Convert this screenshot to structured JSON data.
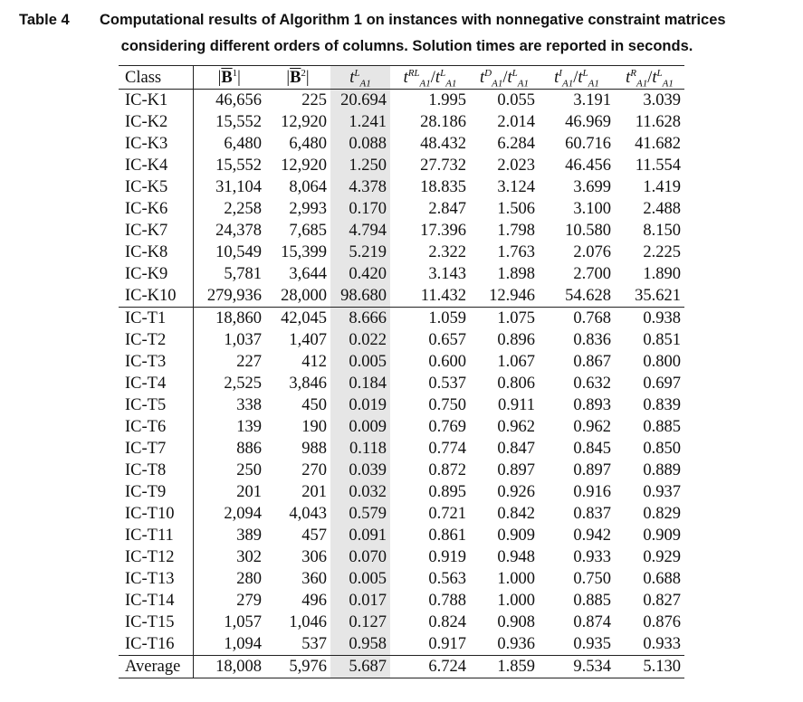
{
  "caption": {
    "label": "Table 4",
    "line1": "Computational results of Algorithm 1 on instances with nonnegative constraint matrices",
    "line2": "considering different orders of columns. Solution times are reported in seconds."
  },
  "table": {
    "headers": {
      "class": "Class",
      "b1": {
        "open": "|",
        "bar": "B",
        "sup": "1",
        "close": "|"
      },
      "b2": {
        "open": "|",
        "bar": "B",
        "sup": "2",
        "close": "|"
      },
      "tL": {
        "t": "t",
        "sup": "L",
        "sub": "A1"
      },
      "rl": {
        "t": "t",
        "sup": "RL",
        "sub": "A1",
        "slash": "/",
        "t2": "t",
        "sup2": "L",
        "sub2": "A1"
      },
      "d": {
        "t": "t",
        "sup": "D",
        "sub": "A1",
        "slash": "/",
        "t2": "t",
        "sup2": "L",
        "sub2": "A1"
      },
      "i": {
        "t": "t",
        "sup": "I",
        "sub": "A1",
        "slash": "/",
        "t2": "t",
        "sup2": "L",
        "sub2": "A1"
      },
      "r": {
        "t": "t",
        "sup": "R",
        "sub": "A1",
        "slash": "/",
        "t2": "t",
        "sup2": "L",
        "sub2": "A1"
      }
    },
    "groups": [
      {
        "rows": [
          [
            "IC-K1",
            "46,656",
            "225",
            "20.694",
            "1.995",
            "0.055",
            "3.191",
            "3.039"
          ],
          [
            "IC-K2",
            "15,552",
            "12,920",
            "1.241",
            "28.186",
            "2.014",
            "46.969",
            "11.628"
          ],
          [
            "IC-K3",
            "6,480",
            "6,480",
            "0.088",
            "48.432",
            "6.284",
            "60.716",
            "41.682"
          ],
          [
            "IC-K4",
            "15,552",
            "12,920",
            "1.250",
            "27.732",
            "2.023",
            "46.456",
            "11.554"
          ],
          [
            "IC-K5",
            "31,104",
            "8,064",
            "4.378",
            "18.835",
            "3.124",
            "3.699",
            "1.419"
          ],
          [
            "IC-K6",
            "2,258",
            "2,993",
            "0.170",
            "2.847",
            "1.506",
            "3.100",
            "2.488"
          ],
          [
            "IC-K7",
            "24,378",
            "7,685",
            "4.794",
            "17.396",
            "1.798",
            "10.580",
            "8.150"
          ],
          [
            "IC-K8",
            "10,549",
            "15,399",
            "5.219",
            "2.322",
            "1.763",
            "2.076",
            "2.225"
          ],
          [
            "IC-K9",
            "5,781",
            "3,644",
            "0.420",
            "3.143",
            "1.898",
            "2.700",
            "1.890"
          ],
          [
            "IC-K10",
            "279,936",
            "28,000",
            "98.680",
            "11.432",
            "12.946",
            "54.628",
            "35.621"
          ]
        ]
      },
      {
        "rows": [
          [
            "IC-T1",
            "18,860",
            "42,045",
            "8.666",
            "1.059",
            "1.075",
            "0.768",
            "0.938"
          ],
          [
            "IC-T2",
            "1,037",
            "1,407",
            "0.022",
            "0.657",
            "0.896",
            "0.836",
            "0.851"
          ],
          [
            "IC-T3",
            "227",
            "412",
            "0.005",
            "0.600",
            "1.067",
            "0.867",
            "0.800"
          ],
          [
            "IC-T4",
            "2,525",
            "3,846",
            "0.184",
            "0.537",
            "0.806",
            "0.632",
            "0.697"
          ],
          [
            "IC-T5",
            "338",
            "450",
            "0.019",
            "0.750",
            "0.911",
            "0.893",
            "0.839"
          ],
          [
            "IC-T6",
            "139",
            "190",
            "0.009",
            "0.769",
            "0.962",
            "0.962",
            "0.885"
          ],
          [
            "IC-T7",
            "886",
            "988",
            "0.118",
            "0.774",
            "0.847",
            "0.845",
            "0.850"
          ],
          [
            "IC-T8",
            "250",
            "270",
            "0.039",
            "0.872",
            "0.897",
            "0.897",
            "0.889"
          ],
          [
            "IC-T9",
            "201",
            "201",
            "0.032",
            "0.895",
            "0.926",
            "0.916",
            "0.937"
          ],
          [
            "IC-T10",
            "2,094",
            "4,043",
            "0.579",
            "0.721",
            "0.842",
            "0.837",
            "0.829"
          ],
          [
            "IC-T11",
            "389",
            "457",
            "0.091",
            "0.861",
            "0.909",
            "0.942",
            "0.909"
          ],
          [
            "IC-T12",
            "302",
            "306",
            "0.070",
            "0.919",
            "0.948",
            "0.933",
            "0.929"
          ],
          [
            "IC-T13",
            "280",
            "360",
            "0.005",
            "0.563",
            "1.000",
            "0.750",
            "0.688"
          ],
          [
            "IC-T14",
            "279",
            "496",
            "0.017",
            "0.788",
            "1.000",
            "0.885",
            "0.827"
          ],
          [
            "IC-T15",
            "1,057",
            "1,046",
            "0.127",
            "0.824",
            "0.908",
            "0.874",
            "0.876"
          ],
          [
            "IC-T16",
            "1,094",
            "537",
            "0.958",
            "0.917",
            "0.936",
            "0.935",
            "0.933"
          ]
        ]
      }
    ],
    "average": [
      "Average",
      "18,008",
      "5,976",
      "5.687",
      "6.724",
      "1.859",
      "9.534",
      "5.130"
    ],
    "highlight_color": "#e6e6e6"
  }
}
